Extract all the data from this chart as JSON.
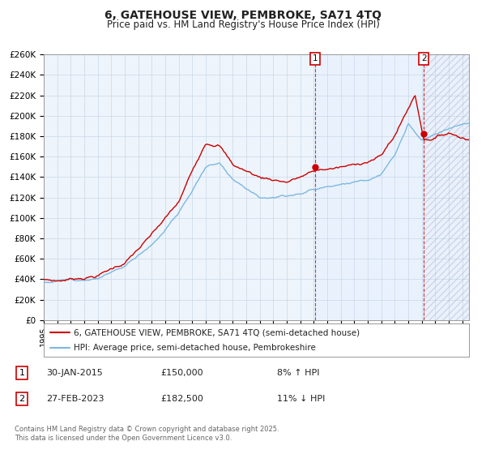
{
  "title": "6, GATEHOUSE VIEW, PEMBROKE, SA71 4TQ",
  "subtitle": "Price paid vs. HM Land Registry's House Price Index (HPI)",
  "ylim": [
    0,
    260000
  ],
  "xlim_start": 1995.0,
  "xlim_end": 2026.5,
  "yticks": [
    0,
    20000,
    40000,
    60000,
    80000,
    100000,
    120000,
    140000,
    160000,
    180000,
    200000,
    220000,
    240000,
    260000
  ],
  "ytick_labels": [
    "£0",
    "£20K",
    "£40K",
    "£60K",
    "£80K",
    "£100K",
    "£120K",
    "£140K",
    "£160K",
    "£180K",
    "£200K",
    "£220K",
    "£240K",
    "£260K"
  ],
  "hpi_color": "#7cb8e0",
  "price_color": "#cc0000",
  "sale1_x": 2015.08,
  "sale1_y": 150000,
  "sale2_x": 2023.16,
  "sale2_y": 182500,
  "vline1_x": 2015.08,
  "vline2_x": 2023.16,
  "legend_line1": "6, GATEHOUSE VIEW, PEMBROKE, SA71 4TQ (semi-detached house)",
  "legend_line2": "HPI: Average price, semi-detached house, Pembrokeshire",
  "footnote": "Contains HM Land Registry data © Crown copyright and database right 2025.\nThis data is licensed under the Open Government Licence v3.0.",
  "background_color": "#ffffff",
  "grid_color": "#c8d8e8",
  "shade_color": "#ddeeff"
}
